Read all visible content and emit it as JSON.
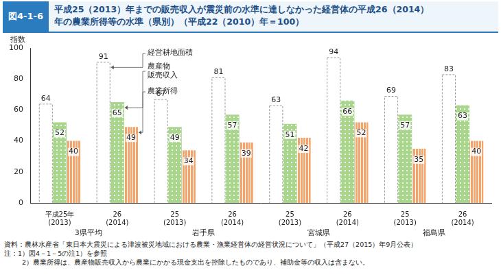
{
  "figure_label": "図4-1-6",
  "title": "平成25（2013）年までの販売収入が震災前の水準に達しなかった経営体の平成26（2014）\n年の農業所得等の水準（県別）（平成22（2010）年＝100）",
  "notes": [
    "資料：農林水産省「東日本大震災による津波被災地域における農業・漁業経営体の経営状況について」（平成27（2015）年9月公表）",
    "注：1）図4－1－5の注1）を参照",
    "2）農業所得は、農産物販売収入から農業にかかる現金支出を控除したものであり、補助金等の収入は含まない。"
  ],
  "chart_data": {
    "type": "bar",
    "y_label": "指数",
    "categories": [
      [
        "平成25年",
        "(2013)"
      ],
      [
        "26",
        "(2014)"
      ],
      [
        "25",
        "(2013)"
      ],
      [
        "26",
        "(2014)"
      ],
      [
        "25",
        "(2013)"
      ],
      [
        "26",
        "(2014)"
      ],
      [
        "25",
        "(2013)"
      ],
      [
        "26",
        "(2014)"
      ]
    ],
    "groups": [
      "3県平均",
      "岩手県",
      "宮城県",
      "福島県"
    ],
    "series": [
      {
        "name": "経営耕地面積",
        "color": "#9a9a9a",
        "line_style": "dashed",
        "values": [
          64,
          91,
          67,
          81,
          63,
          94,
          69,
          83
        ]
      },
      {
        "name": "農産物\n販売収入",
        "color": "#a9d58c",
        "marker": "dots",
        "values": [
          52,
          65,
          49,
          57,
          51,
          66,
          57,
          63
        ]
      },
      {
        "name": "農業所得",
        "color": "#f4a46a",
        "marker": "stripes",
        "values": [
          40,
          49,
          34,
          39,
          42,
          52,
          35,
          40
        ]
      }
    ],
    "ylim": [
      0,
      100
    ],
    "yticks": [
      0,
      20,
      40,
      60,
      80,
      100
    ],
    "grid": false,
    "data_labels": true
  }
}
